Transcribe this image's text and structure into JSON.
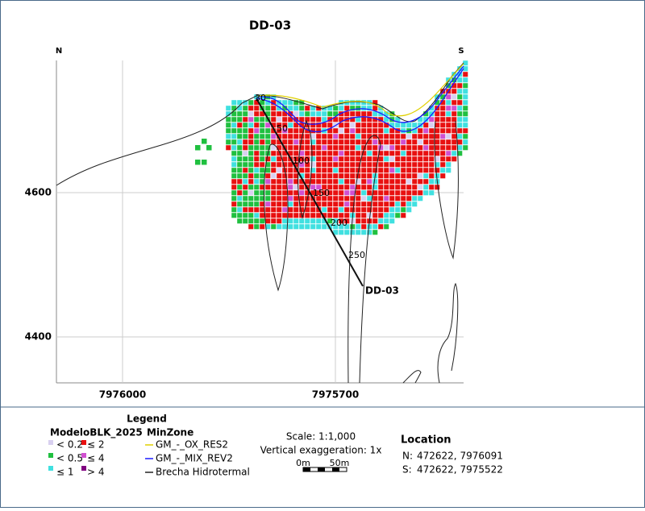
{
  "map": {
    "title": "DD-03",
    "north": "N",
    "south": "S",
    "y_labels": [
      "4600",
      "4400"
    ],
    "x_labels": [
      "7976000",
      "7975700"
    ],
    "hole_label": "DD-03",
    "depth_labels": [
      "30",
      "50",
      "100",
      "150",
      "200",
      "250"
    ]
  },
  "legend": {
    "title": "Legend",
    "block_layer": "ModeloBLK_2025",
    "zone_layer": "MinZone",
    "block_classes": [
      "< 0.2",
      "≤ 2",
      "< 0.5",
      "≤ 4",
      "≤ 1",
      "> 4"
    ],
    "zone_lines": [
      "GM_-_OX_RES2",
      "GM_-_MIX_REV2",
      "Brecha Hidrotermal"
    ]
  },
  "scale": {
    "text": "Scale: 1:1,000",
    "exaggeration": "Vertical exaggeration: 1x",
    "bar_start": "0m",
    "bar_end": "50m"
  },
  "location": {
    "title": "Location",
    "north": {
      "label": "N:",
      "coords": "472622, 7976091"
    },
    "south": {
      "label": "S:",
      "coords": "472622, 7975522"
    }
  }
}
